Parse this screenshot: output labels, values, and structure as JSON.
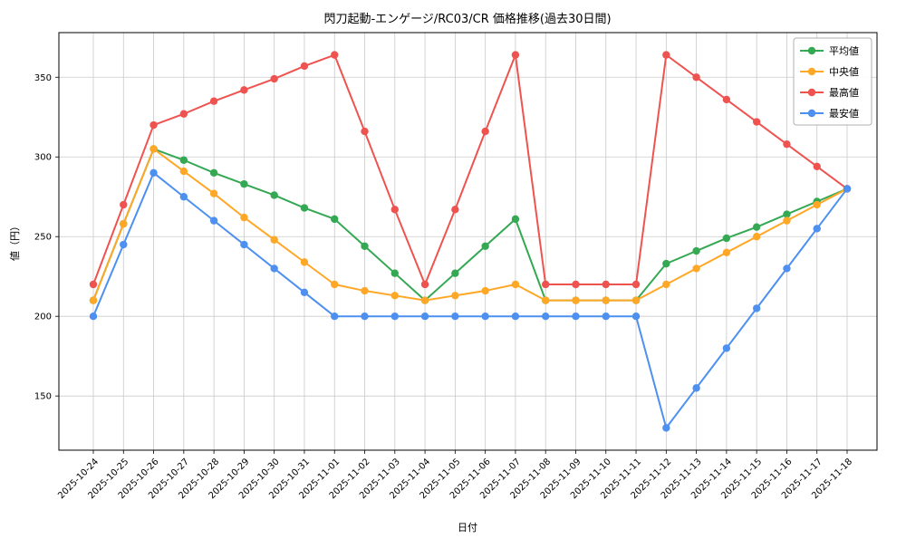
{
  "chart_data": {
    "type": "line",
    "title": "閃刀起動-エンゲージ/RC03/CR 価格推移(過去30日間)",
    "xlabel": "日付",
    "ylabel": "値（円）",
    "grid": true,
    "legend_position": "upper right",
    "yticks": [
      150,
      200,
      250,
      300,
      350
    ],
    "ylim": [
      116,
      378
    ],
    "x": [
      "2025-10-24",
      "2025-10-25",
      "2025-10-26",
      "2025-10-27",
      "2025-10-28",
      "2025-10-29",
      "2025-10-30",
      "2025-10-31",
      "2025-11-01",
      "2025-11-02",
      "2025-11-03",
      "2025-11-04",
      "2025-11-05",
      "2025-11-06",
      "2025-11-07",
      "2025-11-08",
      "2025-11-09",
      "2025-11-10",
      "2025-11-11",
      "2025-11-12",
      "2025-11-13",
      "2025-11-14",
      "2025-11-15",
      "2025-11-16",
      "2025-11-17",
      "2025-11-18"
    ],
    "series": [
      {
        "key": "average",
        "name": "平均値",
        "color": "#34a853",
        "values": [
          210,
          258,
          305,
          298,
          290,
          283,
          276,
          268,
          261,
          244,
          227,
          210,
          227,
          244,
          261,
          210,
          210,
          210,
          210,
          233,
          241,
          249,
          256,
          264,
          272,
          280
        ]
      },
      {
        "key": "median",
        "name": "中央値",
        "color": "#ffa726",
        "values": [
          210,
          258,
          305,
          291,
          277,
          262,
          248,
          234,
          220,
          216,
          213,
          210,
          213,
          216,
          220,
          210,
          210,
          210,
          210,
          220,
          230,
          240,
          250,
          260,
          270,
          280
        ]
      },
      {
        "key": "max",
        "name": "最高値",
        "color": "#ef5350",
        "values": [
          220,
          270,
          320,
          327,
          335,
          342,
          349,
          357,
          364,
          316,
          267,
          220,
          267,
          316,
          364,
          220,
          220,
          220,
          220,
          364,
          350,
          336,
          322,
          308,
          294,
          280
        ]
      },
      {
        "key": "min",
        "name": "最安値",
        "color": "#4d90f0",
        "values": [
          200,
          245,
          290,
          275,
          260,
          245,
          230,
          215,
          200,
          200,
          200,
          200,
          200,
          200,
          200,
          200,
          200,
          200,
          200,
          130,
          155,
          180,
          205,
          230,
          255,
          280
        ]
      }
    ]
  }
}
